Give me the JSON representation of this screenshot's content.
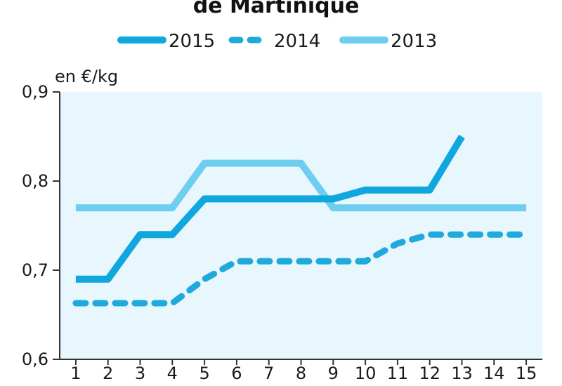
{
  "chart_data": {
    "type": "line",
    "title": "de Martinique",
    "ylabel": "en €/kg",
    "xlabel": "",
    "x": [
      1,
      2,
      3,
      4,
      5,
      6,
      7,
      8,
      9,
      10,
      11,
      12,
      13,
      14,
      15
    ],
    "x_tick_labels": [
      "1",
      "2",
      "3",
      "4",
      "5",
      "6",
      "7",
      "8",
      "9",
      "10",
      "11",
      "12",
      "13",
      "14",
      "15"
    ],
    "y_tick_labels": [
      "0,6",
      "0,7",
      "0,8",
      "0,9"
    ],
    "y_ticks": [
      0.6,
      0.7,
      0.8,
      0.9
    ],
    "xlim": [
      0.5,
      15.5
    ],
    "ylim": [
      0.6,
      0.9
    ],
    "grid": false,
    "legend_position": "top",
    "series": [
      {
        "name": "2015",
        "color": "#0fa7dd",
        "style": "solid",
        "values": [
          0.69,
          0.69,
          0.74,
          0.74,
          0.78,
          0.78,
          0.78,
          0.78,
          0.78,
          0.79,
          0.79,
          0.79,
          0.85,
          null,
          null
        ]
      },
      {
        "name": "2014",
        "color": "#20a9dc",
        "style": "dashed",
        "values": [
          0.663,
          0.663,
          0.663,
          0.663,
          0.69,
          0.71,
          0.71,
          0.71,
          0.71,
          0.71,
          0.73,
          0.74,
          0.74,
          0.74,
          0.74
        ]
      },
      {
        "name": "2013",
        "color": "#6fcdf0",
        "style": "solid",
        "values": [
          0.77,
          0.77,
          0.77,
          0.77,
          0.82,
          0.82,
          0.82,
          0.82,
          0.77,
          0.77,
          0.77,
          0.77,
          0.77,
          0.77,
          0.77
        ]
      }
    ],
    "plot_background": "#e8f6fd"
  }
}
